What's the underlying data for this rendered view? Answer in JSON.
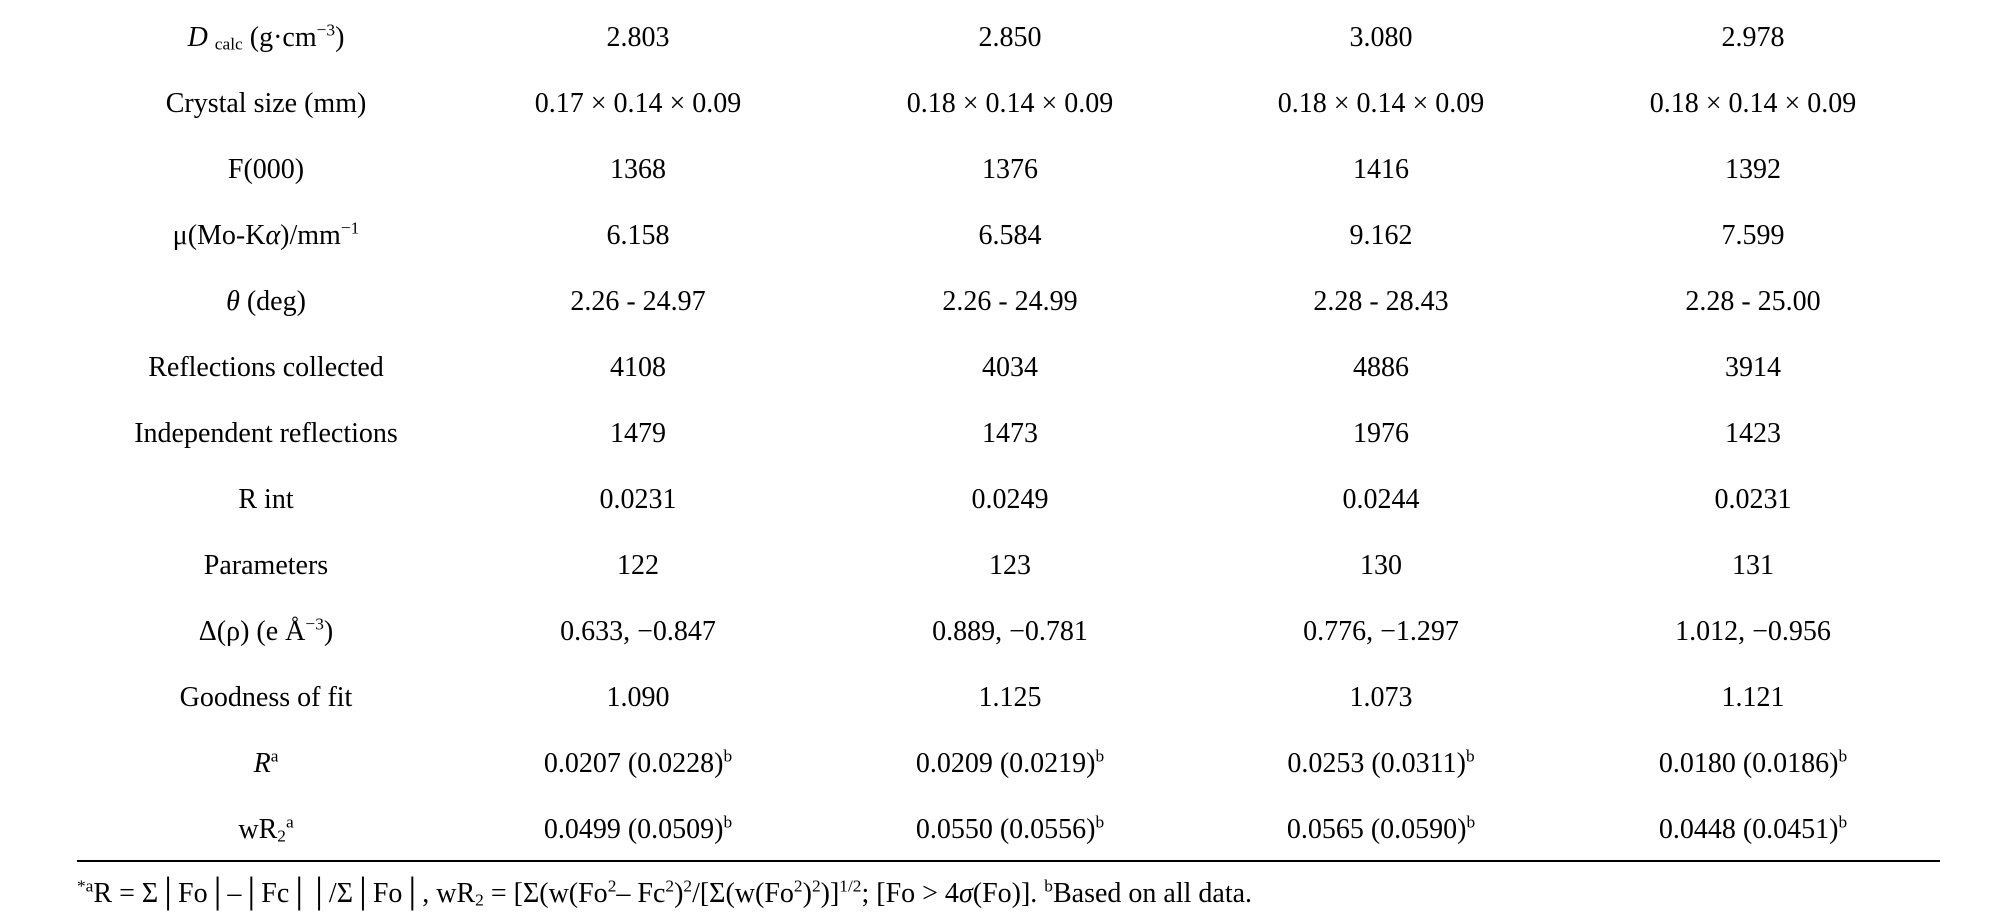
{
  "table": {
    "rows": [
      [
        [
          {
            "i": "D"
          },
          " ",
          {
            "sub": "calc"
          },
          " (g·cm",
          {
            "sup": "−3"
          },
          ")"
        ],
        [
          "2.803"
        ],
        [
          "2.850"
        ],
        [
          "3.080"
        ],
        [
          "2.978"
        ]
      ],
      [
        [
          "Crystal size (mm)"
        ],
        [
          "0.17 × 0.14 × 0.09"
        ],
        [
          "0.18 × 0.14 × 0.09"
        ],
        [
          "0.18 × 0.14 × 0.09"
        ],
        [
          "0.18 × 0.14 × 0.09"
        ]
      ],
      [
        [
          "F(000)"
        ],
        [
          "1368"
        ],
        [
          "1376"
        ],
        [
          "1416"
        ],
        [
          "1392"
        ]
      ],
      [
        [
          "μ(Mo-K",
          {
            "i": "α"
          },
          ")/mm",
          {
            "sup": "−1"
          }
        ],
        [
          "6.158"
        ],
        [
          "6.584"
        ],
        [
          "9.162"
        ],
        [
          "7.599"
        ]
      ],
      [
        [
          {
            "i": "θ"
          },
          " (deg)"
        ],
        [
          "2.26 - 24.97"
        ],
        [
          "2.26 - 24.99"
        ],
        [
          "2.28 - 28.43"
        ],
        [
          "2.28 - 25.00"
        ]
      ],
      [
        [
          "Reflections collected"
        ],
        [
          "4108"
        ],
        [
          "4034"
        ],
        [
          "4886"
        ],
        [
          "3914"
        ]
      ],
      [
        [
          "Independent reflections"
        ],
        [
          "1479"
        ],
        [
          "1473"
        ],
        [
          "1976"
        ],
        [
          "1423"
        ]
      ],
      [
        [
          "R int"
        ],
        [
          "0.0231"
        ],
        [
          "0.0249"
        ],
        [
          "0.0244"
        ],
        [
          "0.0231"
        ]
      ],
      [
        [
          "Parameters"
        ],
        [
          "122"
        ],
        [
          "123"
        ],
        [
          "130"
        ],
        [
          "131"
        ]
      ],
      [
        [
          "Δ(ρ) (e Å",
          {
            "sup": "−3"
          },
          ")"
        ],
        [
          "0.633, −0.847"
        ],
        [
          "0.889, −0.781"
        ],
        [
          "0.776, −1.297"
        ],
        [
          "1.012, −0.956"
        ]
      ],
      [
        [
          "Goodness of fit"
        ],
        [
          "1.090"
        ],
        [
          "1.125"
        ],
        [
          "1.073"
        ],
        [
          "1.121"
        ]
      ],
      [
        [
          {
            "i": "R"
          },
          {
            "sup": "a"
          }
        ],
        [
          "0.0207 (0.0228)",
          {
            "sup": "b"
          }
        ],
        [
          "0.0209 (0.0219)",
          {
            "sup": "b"
          }
        ],
        [
          "0.0253 (0.0311)",
          {
            "sup": "b"
          }
        ],
        [
          "0.0180 (0.0186)",
          {
            "sup": "b"
          }
        ]
      ],
      [
        [
          "wR",
          {
            "sub": "2"
          },
          {
            "sup": "a"
          }
        ],
        [
          "0.0499 (0.0509)",
          {
            "sup": "b"
          }
        ],
        [
          "0.0550 (0.0556)",
          {
            "sup": "b"
          }
        ],
        [
          "0.0565 (0.0590)",
          {
            "sup": "b"
          }
        ],
        [
          "0.0448 (0.0451)",
          {
            "sup": "b"
          }
        ]
      ]
    ]
  },
  "footnote": [
    {
      "sup": "*a"
    },
    "R = Σ│Fo│–│Fc││/Σ│Fo│, wR",
    {
      "sub": "2"
    },
    " = [Σ(w(Fo",
    {
      "sup": "2"
    },
    "– Fc",
    {
      "sup": "2"
    },
    ")",
    {
      "sup": "2"
    },
    "/[Σ(w(Fo",
    {
      "sup": "2"
    },
    ")",
    {
      "sup": "2"
    },
    ")]",
    {
      "sup": "1/2"
    },
    "; [Fo > 4",
    {
      "i": "σ"
    },
    "(Fo)]. ",
    {
      "sup": "b"
    },
    "Based on all data."
  ]
}
